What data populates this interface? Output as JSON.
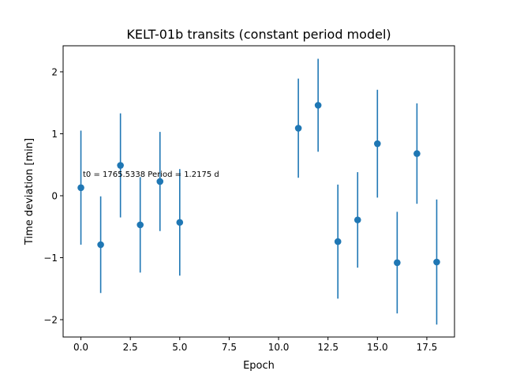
{
  "chart_data": {
    "type": "scatter",
    "title": "KELT-01b transits (constant period model)",
    "xlabel": "Epoch",
    "ylabel": "Time deviation [min]",
    "xlim": [
      -0.9,
      18.9
    ],
    "ylim": [
      -2.28,
      2.42
    ],
    "xticks": [
      0.0,
      2.5,
      5.0,
      7.5,
      10.0,
      12.5,
      15.0,
      17.5
    ],
    "xtick_labels": [
      "0.0",
      "2.5",
      "5.0",
      "7.5",
      "10.0",
      "12.5",
      "15.0",
      "17.5"
    ],
    "yticks": [
      -2,
      -1,
      0,
      1,
      2
    ],
    "ytick_labels": [
      "−2",
      "−1",
      "0",
      "1",
      "2"
    ],
    "annotation": "t0 = 1765.5338 Period = 1.2175 d",
    "grid": false,
    "series": [
      {
        "color": "#1f77b4",
        "points": [
          {
            "x": 0,
            "y": 0.13,
            "err": 0.92
          },
          {
            "x": 1,
            "y": -0.79,
            "err": 0.78
          },
          {
            "x": 2,
            "y": 0.49,
            "err": 0.84
          },
          {
            "x": 3,
            "y": -0.47,
            "err": 0.77
          },
          {
            "x": 4,
            "y": 0.23,
            "err": 0.8
          },
          {
            "x": 5,
            "y": -0.43,
            "err": 0.86
          },
          {
            "x": 11,
            "y": 1.09,
            "err": 0.8
          },
          {
            "x": 12,
            "y": 1.46,
            "err": 0.75
          },
          {
            "x": 13,
            "y": -0.74,
            "err": 0.92
          },
          {
            "x": 14,
            "y": -0.39,
            "err": 0.77
          },
          {
            "x": 15,
            "y": 0.84,
            "err": 0.87
          },
          {
            "x": 16,
            "y": -1.08,
            "err": 0.82
          },
          {
            "x": 17,
            "y": 0.68,
            "err": 0.81
          },
          {
            "x": 18,
            "y": -1.07,
            "err": 1.01
          }
        ]
      }
    ]
  }
}
